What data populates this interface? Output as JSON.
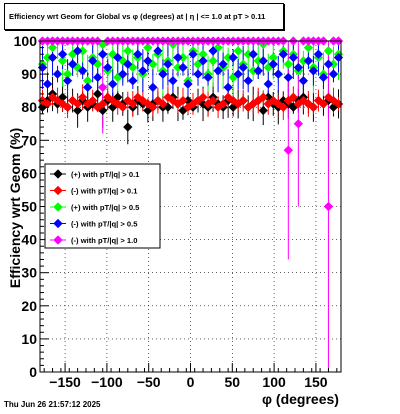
{
  "title": "Efficiency wrt Geom for Global vs φ (degrees) at |  η  | <= 1.0 at pT > 0.11",
  "footer": "Thu Jun 26 21:57:12 2025",
  "colors": {
    "plus_pt01": "#000000",
    "minus_pt01": "#ff0000",
    "plus_pt05": "#00ff00",
    "minus_pt05": "#0000ff",
    "minus_pt10": "#ff00ff"
  },
  "chart_data": {
    "type": "scatter",
    "title": "Efficiency wrt Geom for Global vs φ (degrees) at |  η  | <= 1.0 at pT > 0.11",
    "xlabel": "φ (degrees)",
    "ylabel": "Efficiency wrt Geom (%)",
    "xlim": [
      -180,
      180
    ],
    "ylim": [
      0,
      100
    ],
    "x_ticks": [
      -150,
      -100,
      -50,
      0,
      50,
      100,
      150
    ],
    "y_ticks": [
      0,
      10,
      20,
      30,
      40,
      50,
      60,
      70,
      80,
      90,
      100
    ],
    "grid": true,
    "legend_position": "left-middle",
    "series": [
      {
        "name": "(+) with pT/|q| > 0.1",
        "x": [
          -177,
          -171,
          -165,
          -159,
          -153,
          -147,
          -141,
          -135,
          -129,
          -123,
          -117,
          -111,
          -105,
          -99,
          -93,
          -87,
          -81,
          -75,
          -69,
          -63,
          -57,
          -51,
          -45,
          -39,
          -33,
          -27,
          -21,
          -15,
          -9,
          -3,
          3,
          9,
          15,
          21,
          27,
          33,
          39,
          45,
          51,
          57,
          63,
          69,
          75,
          81,
          87,
          93,
          99,
          105,
          111,
          117,
          123,
          129,
          135,
          141,
          147,
          153,
          159,
          165,
          171,
          177
        ],
        "y": [
          80,
          82,
          84,
          81,
          83,
          80,
          82,
          79,
          82,
          80,
          81,
          84,
          79,
          82,
          80,
          83,
          81,
          74,
          80,
          82,
          81,
          79,
          81,
          82,
          80,
          80,
          83,
          81,
          79,
          82,
          80,
          82,
          81,
          80,
          83,
          81,
          80,
          82,
          80,
          81,
          82,
          80,
          81,
          82,
          79,
          83,
          81,
          80,
          82,
          81,
          80,
          82,
          83,
          81,
          80,
          82,
          81,
          82,
          80,
          81
        ]
      },
      {
        "name": "(-) with pT/|q| > 0.1",
        "x": [
          -177,
          -171,
          -165,
          -159,
          -153,
          -147,
          -141,
          -135,
          -129,
          -123,
          -117,
          -111,
          -105,
          -99,
          -93,
          -87,
          -81,
          -75,
          -69,
          -63,
          -57,
          -51,
          -45,
          -39,
          -33,
          -27,
          -21,
          -15,
          -9,
          -3,
          3,
          9,
          15,
          21,
          27,
          33,
          39,
          45,
          51,
          57,
          63,
          69,
          75,
          81,
          87,
          93,
          99,
          105,
          111,
          117,
          123,
          129,
          135,
          141,
          147,
          153,
          159,
          165,
          171,
          177
        ],
        "y": [
          82,
          81,
          83,
          82,
          81,
          80,
          82,
          81,
          83,
          81,
          82,
          80,
          81,
          83,
          82,
          81,
          80,
          82,
          81,
          83,
          82,
          81,
          80,
          82,
          81,
          83,
          82,
          81,
          82,
          80,
          81,
          82,
          83,
          81,
          82,
          80,
          81,
          83,
          82,
          81,
          82,
          80,
          81,
          82,
          83,
          81,
          82,
          81,
          80,
          82,
          83,
          81,
          82,
          81,
          80,
          82,
          81,
          83,
          82,
          81
        ]
      },
      {
        "name": "(+) with pT/|q| > 0.5",
        "x": [
          -177,
          -171,
          -165,
          -159,
          -153,
          -147,
          -141,
          -135,
          -129,
          -123,
          -117,
          -111,
          -105,
          -99,
          -93,
          -87,
          -81,
          -75,
          -69,
          -63,
          -57,
          -51,
          -45,
          -39,
          -33,
          -27,
          -21,
          -15,
          -9,
          -3,
          3,
          9,
          15,
          21,
          27,
          33,
          39,
          45,
          51,
          57,
          63,
          69,
          75,
          81,
          87,
          93,
          99,
          105,
          111,
          117,
          123,
          129,
          135,
          141,
          147,
          153,
          159,
          165,
          171,
          177
        ],
        "y": [
          93,
          95,
          98,
          100,
          94,
          90,
          96,
          92,
          97,
          88,
          95,
          93,
          99,
          91,
          96,
          89,
          94,
          97,
          92,
          95,
          90,
          98,
          93,
          96,
          91,
          94,
          99,
          92,
          95,
          88,
          97,
          93,
          96,
          90,
          94,
          98,
          92,
          95,
          89,
          97,
          93,
          96,
          91,
          94,
          99,
          92,
          95,
          90,
          97,
          93,
          96,
          91,
          94,
          98,
          92,
          95,
          90,
          97,
          93,
          96
        ]
      },
      {
        "name": "(-) with pT/|q| > 0.5",
        "x": [
          -177,
          -171,
          -165,
          -159,
          -153,
          -147,
          -141,
          -135,
          -129,
          -123,
          -117,
          -111,
          -105,
          -99,
          -93,
          -87,
          -81,
          -75,
          -69,
          -63,
          -57,
          -51,
          -45,
          -39,
          -33,
          -27,
          -21,
          -15,
          -9,
          -3,
          3,
          9,
          15,
          21,
          27,
          33,
          39,
          45,
          51,
          57,
          63,
          69,
          75,
          81,
          87,
          93,
          99,
          105,
          111,
          117,
          123,
          129,
          135,
          141,
          147,
          153,
          159,
          165,
          171,
          177
        ],
        "y": [
          92,
          87,
          95,
          90,
          96,
          88,
          93,
          97,
          91,
          86,
          94,
          89,
          96,
          92,
          87,
          95,
          90,
          93,
          88,
          96,
          91,
          94,
          86,
          97,
          90,
          93,
          88,
          95,
          92,
          87,
          96,
          90,
          94,
          89,
          97,
          91,
          93,
          86,
          95,
          90,
          92,
          88,
          96,
          91,
          94,
          87,
          93,
          90,
          96,
          89,
          95,
          92,
          88,
          94,
          91,
          96,
          89,
          93,
          90,
          95
        ]
      },
      {
        "name": "(-) with pT/|q| > 1.0",
        "x": [
          -177,
          -171,
          -165,
          -159,
          -153,
          -147,
          -141,
          -135,
          -129,
          -123,
          -117,
          -111,
          -105,
          -99,
          -93,
          -87,
          -81,
          -75,
          -69,
          -63,
          -57,
          -51,
          -45,
          -39,
          -33,
          -27,
          -21,
          -15,
          -9,
          -3,
          3,
          9,
          15,
          21,
          27,
          33,
          39,
          45,
          51,
          57,
          63,
          69,
          75,
          81,
          87,
          93,
          99,
          105,
          111,
          117,
          123,
          129,
          135,
          141,
          147,
          153,
          159,
          165,
          171,
          177
        ],
        "y": [
          100,
          100,
          100,
          100,
          100,
          100,
          100,
          100,
          100,
          100,
          100,
          100,
          86,
          100,
          100,
          100,
          100,
          100,
          100,
          100,
          100,
          100,
          100,
          100,
          100,
          100,
          100,
          100,
          100,
          100,
          100,
          100,
          100,
          100,
          100,
          100,
          100,
          100,
          100,
          100,
          100,
          100,
          100,
          100,
          100,
          100,
          100,
          100,
          100,
          67,
          100,
          75,
          100,
          100,
          100,
          100,
          100,
          50,
          100,
          100
        ]
      }
    ]
  }
}
